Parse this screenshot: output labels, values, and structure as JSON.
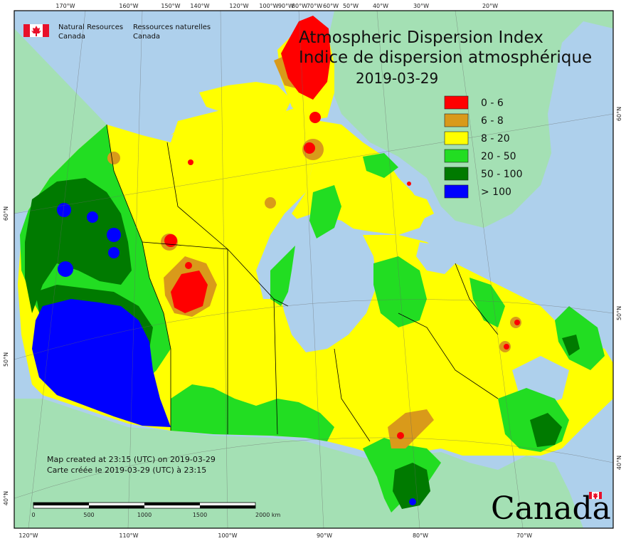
{
  "agency": {
    "line1_en": "Natural Resources",
    "line2_en": "Canada",
    "line1_fr": "Ressources naturelles",
    "line2_fr": "Canada"
  },
  "title": {
    "en": "Atmospheric Dispersion Index",
    "fr": "Indice de dispersion atmosphérique",
    "date": "2019-03-29"
  },
  "legend": [
    {
      "label": "0 - 6",
      "color": "#ff0000"
    },
    {
      "label": "6 - 8",
      "color": "#d99a1a"
    },
    {
      "label": "8 - 20",
      "color": "#ffff00"
    },
    {
      "label": "20 - 50",
      "color": "#22dd22"
    },
    {
      "label": "50 - 100",
      "color": "#007a00"
    },
    {
      "label": "> 100",
      "color": "#0000ff"
    }
  ],
  "credit": {
    "en": "Map created at 23:15 (UTC) on 2019-03-29",
    "fr": "Carte créée le 2019-03-29 (UTC) à 23:15"
  },
  "scalebar": {
    "labels": [
      "0",
      "500",
      "1000",
      "1500",
      "2000 km"
    ]
  },
  "wordmark": "Canada",
  "top_ticks": [
    "170°W",
    "160°W",
    "150°W",
    "140°W",
    "120°W",
    "100°W",
    "90°W",
    "80°W",
    "70°W",
    "60°W",
    "50°W",
    "40°W",
    "30°W",
    "20°W"
  ],
  "bottom_ticks": [
    "120°W",
    "110°W",
    "100°W",
    "90°W",
    "80°W",
    "70°W"
  ],
  "left_ticks": [
    "60°N",
    "50°N",
    "40°N"
  ],
  "right_ticks": [
    "60°N",
    "50°N",
    "40°N"
  ],
  "colors": {
    "water": "#aed0ec",
    "land_outside": "#a4e0b4",
    "frame": "#000000"
  }
}
